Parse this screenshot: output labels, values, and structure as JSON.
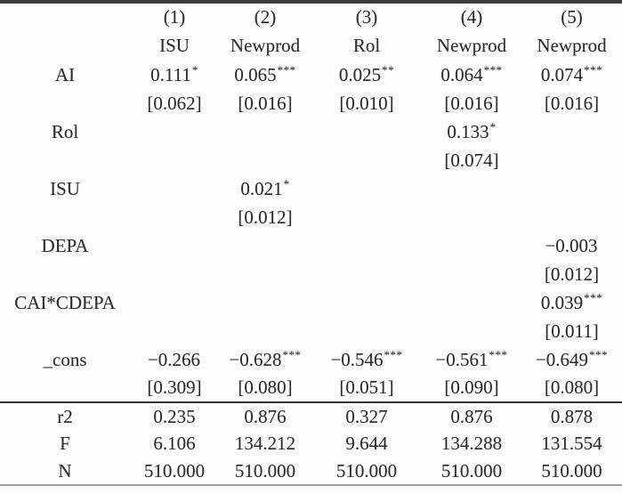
{
  "document": {
    "kind": "regression-results-table"
  },
  "colors": {
    "background": "#fdfdfd",
    "text": "#2d2d2d",
    "rule_top": "#3c3c3c",
    "rule_mid": "#323232",
    "rule_bottom": "#9f9f9f"
  },
  "table": {
    "column_numbers": [
      "(1)",
      "(2)",
      "(3)",
      "(4)",
      "(5)"
    ],
    "dep_vars": [
      "ISU",
      "Newprod",
      "Rol",
      "Newprod",
      "Newprod"
    ],
    "coef_rows": [
      {
        "label": "AI",
        "coefs": [
          "0.111",
          "0.065",
          "0.025",
          "0.064",
          "0.074"
        ],
        "stars": [
          "*",
          "***",
          "**",
          "***",
          "***"
        ],
        "ses": [
          "[0.062]",
          "[0.016]",
          "[0.010]",
          "[0.016]",
          "[0.016]"
        ]
      },
      {
        "label": "Rol",
        "coefs": [
          "",
          "",
          "",
          "0.133",
          ""
        ],
        "stars": [
          "",
          "",
          "",
          "*",
          ""
        ],
        "ses": [
          "",
          "",
          "",
          "[0.074]",
          ""
        ]
      },
      {
        "label": "ISU",
        "coefs": [
          "",
          "0.021",
          "",
          "",
          ""
        ],
        "stars": [
          "",
          "*",
          "",
          "",
          ""
        ],
        "ses": [
          "",
          "[0.012]",
          "",
          "",
          ""
        ]
      },
      {
        "label": "DEPA",
        "coefs": [
          "",
          "",
          "",
          "",
          "−0.003"
        ],
        "stars": [
          "",
          "",
          "",
          "",
          ""
        ],
        "ses": [
          "",
          "",
          "",
          "",
          "[0.012]"
        ]
      },
      {
        "label": "CAI*CDEPA",
        "coefs": [
          "",
          "",
          "",
          "",
          "0.039"
        ],
        "stars": [
          "",
          "",
          "",
          "",
          "***"
        ],
        "ses": [
          "",
          "",
          "",
          "",
          "[0.011]"
        ]
      },
      {
        "label": "_cons",
        "coefs": [
          "−0.266",
          "−0.628",
          "−0.546",
          "−0.561",
          "−0.649"
        ],
        "stars": [
          "",
          "***",
          "***",
          "***",
          "***"
        ],
        "ses": [
          "[0.309]",
          "[0.080]",
          "[0.051]",
          "[0.090]",
          "[0.080]"
        ]
      }
    ],
    "stat_rows": [
      {
        "label": "r2",
        "values": [
          "0.235",
          "0.876",
          "0.327",
          "0.876",
          "0.878"
        ]
      },
      {
        "label": "F",
        "values": [
          "6.106",
          "134.212",
          "9.644",
          "134.288",
          "131.554"
        ]
      },
      {
        "label": "N",
        "values": [
          "510.000",
          "510.000",
          "510.000",
          "510.000",
          "510.000"
        ]
      }
    ]
  }
}
